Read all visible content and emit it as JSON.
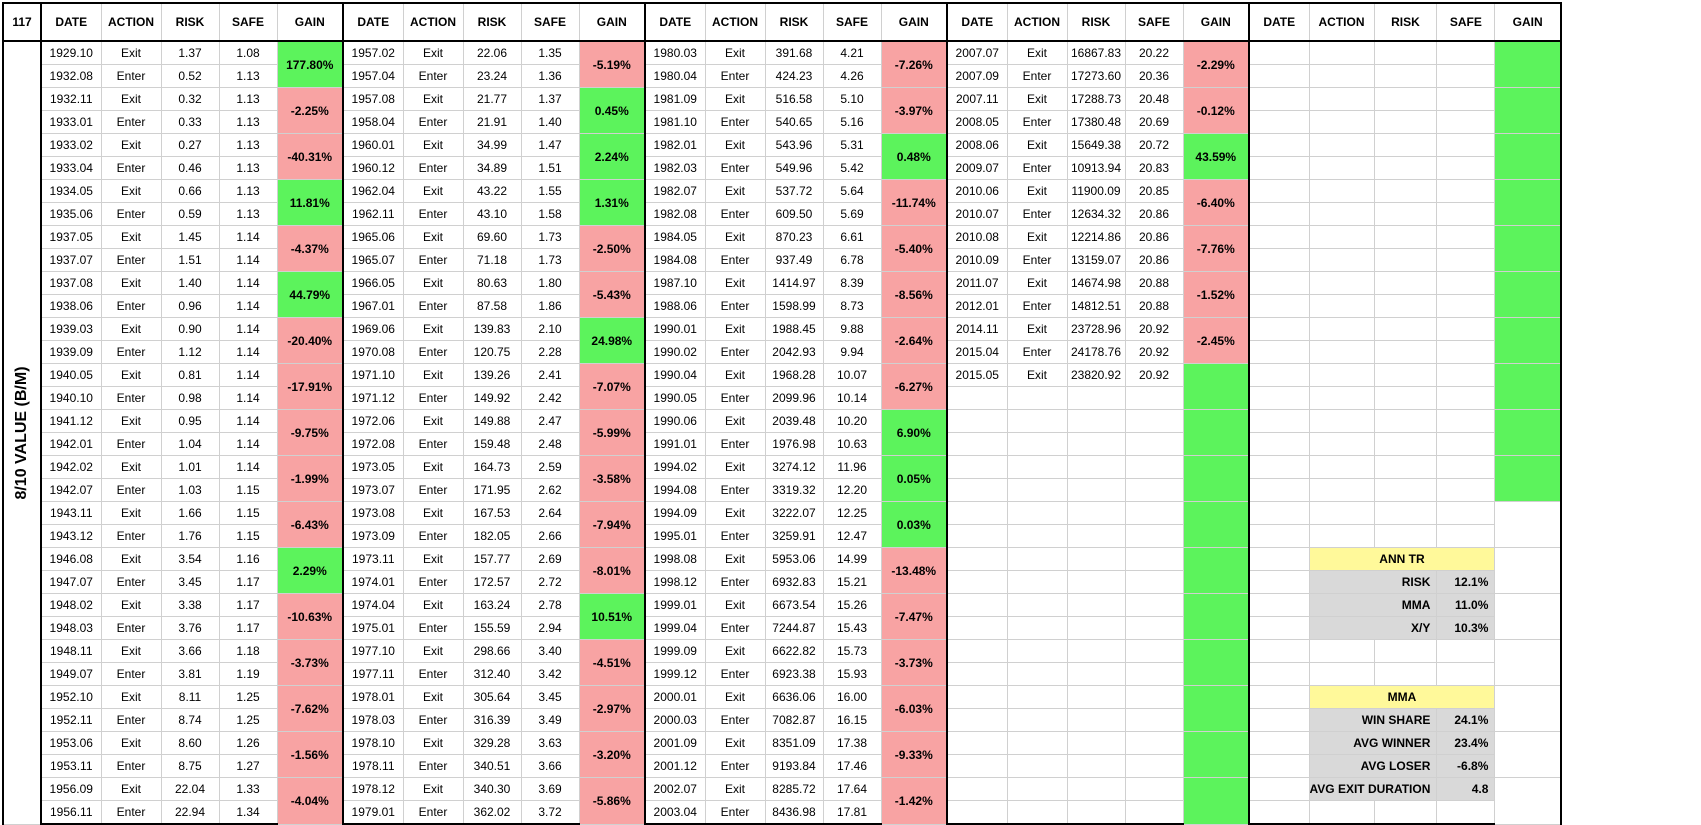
{
  "corner_label": "117",
  "side_label": "8/10 VALUE (B/M)",
  "headers": [
    "DATE",
    "ACTION",
    "RISK",
    "SAFE",
    "GAIN"
  ],
  "blocks": [
    {
      "rows": [
        [
          "1929.10",
          "Exit",
          "1.37",
          "1.08"
        ],
        [
          "1932.08",
          "Enter",
          "0.52",
          "1.13"
        ],
        [
          "1932.11",
          "Exit",
          "0.32",
          "1.13"
        ],
        [
          "1933.01",
          "Enter",
          "0.33",
          "1.13"
        ],
        [
          "1933.02",
          "Exit",
          "0.27",
          "1.13"
        ],
        [
          "1933.04",
          "Enter",
          "0.46",
          "1.13"
        ],
        [
          "1934.05",
          "Exit",
          "0.66",
          "1.13"
        ],
        [
          "1935.06",
          "Enter",
          "0.59",
          "1.13"
        ],
        [
          "1937.05",
          "Exit",
          "1.45",
          "1.14"
        ],
        [
          "1937.07",
          "Enter",
          "1.51",
          "1.14"
        ],
        [
          "1937.08",
          "Exit",
          "1.40",
          "1.14"
        ],
        [
          "1938.06",
          "Enter",
          "0.96",
          "1.14"
        ],
        [
          "1939.03",
          "Exit",
          "0.90",
          "1.14"
        ],
        [
          "1939.09",
          "Enter",
          "1.12",
          "1.14"
        ],
        [
          "1940.05",
          "Exit",
          "0.81",
          "1.14"
        ],
        [
          "1940.10",
          "Enter",
          "0.98",
          "1.14"
        ],
        [
          "1941.12",
          "Exit",
          "0.95",
          "1.14"
        ],
        [
          "1942.01",
          "Enter",
          "1.04",
          "1.14"
        ],
        [
          "1942.02",
          "Exit",
          "1.01",
          "1.14"
        ],
        [
          "1942.07",
          "Enter",
          "1.03",
          "1.15"
        ],
        [
          "1943.11",
          "Exit",
          "1.66",
          "1.15"
        ],
        [
          "1943.12",
          "Enter",
          "1.76",
          "1.15"
        ],
        [
          "1946.08",
          "Exit",
          "3.54",
          "1.16"
        ],
        [
          "1947.07",
          "Enter",
          "3.45",
          "1.17"
        ],
        [
          "1948.02",
          "Exit",
          "3.38",
          "1.17"
        ],
        [
          "1948.03",
          "Enter",
          "3.76",
          "1.17"
        ],
        [
          "1948.11",
          "Exit",
          "3.66",
          "1.18"
        ],
        [
          "1949.07",
          "Enter",
          "3.81",
          "1.19"
        ],
        [
          "1952.10",
          "Exit",
          "8.11",
          "1.25"
        ],
        [
          "1952.11",
          "Enter",
          "8.74",
          "1.25"
        ],
        [
          "1953.06",
          "Exit",
          "8.60",
          "1.26"
        ],
        [
          "1953.11",
          "Enter",
          "8.75",
          "1.27"
        ],
        [
          "1956.09",
          "Exit",
          "22.04",
          "1.33"
        ],
        [
          "1956.11",
          "Enter",
          "22.94",
          "1.34"
        ]
      ],
      "gains": [
        {
          "text": "177.80%",
          "color": "green"
        },
        {
          "text": "-2.25%",
          "color": "red"
        },
        {
          "text": "-40.31%",
          "color": "red"
        },
        {
          "text": "11.81%",
          "color": "green"
        },
        {
          "text": "-4.37%",
          "color": "red"
        },
        {
          "text": "44.79%",
          "color": "green"
        },
        {
          "text": "-20.40%",
          "color": "red"
        },
        {
          "text": "-17.91%",
          "color": "red"
        },
        {
          "text": "-9.75%",
          "color": "red"
        },
        {
          "text": "-1.99%",
          "color": "red"
        },
        {
          "text": "-6.43%",
          "color": "red"
        },
        {
          "text": "2.29%",
          "color": "green"
        },
        {
          "text": "-10.63%",
          "color": "red"
        },
        {
          "text": "-3.73%",
          "color": "red"
        },
        {
          "text": "-7.62%",
          "color": "red"
        },
        {
          "text": "-1.56%",
          "color": "red"
        },
        {
          "text": "-4.04%",
          "color": "red"
        }
      ]
    },
    {
      "rows": [
        [
          "1957.02",
          "Exit",
          "22.06",
          "1.35"
        ],
        [
          "1957.04",
          "Enter",
          "23.24",
          "1.36"
        ],
        [
          "1957.08",
          "Exit",
          "21.77",
          "1.37"
        ],
        [
          "1958.04",
          "Enter",
          "21.91",
          "1.40"
        ],
        [
          "1960.01",
          "Exit",
          "34.99",
          "1.47"
        ],
        [
          "1960.12",
          "Enter",
          "34.89",
          "1.51"
        ],
        [
          "1962.04",
          "Exit",
          "43.22",
          "1.55"
        ],
        [
          "1962.11",
          "Enter",
          "43.10",
          "1.58"
        ],
        [
          "1965.06",
          "Exit",
          "69.60",
          "1.73"
        ],
        [
          "1965.07",
          "Enter",
          "71.18",
          "1.73"
        ],
        [
          "1966.05",
          "Exit",
          "80.63",
          "1.80"
        ],
        [
          "1967.01",
          "Enter",
          "87.58",
          "1.86"
        ],
        [
          "1969.06",
          "Exit",
          "139.83",
          "2.10"
        ],
        [
          "1970.08",
          "Enter",
          "120.75",
          "2.28"
        ],
        [
          "1971.10",
          "Exit",
          "139.26",
          "2.41"
        ],
        [
          "1971.12",
          "Enter",
          "149.92",
          "2.42"
        ],
        [
          "1972.06",
          "Exit",
          "149.88",
          "2.47"
        ],
        [
          "1972.08",
          "Enter",
          "159.48",
          "2.48"
        ],
        [
          "1973.05",
          "Exit",
          "164.73",
          "2.59"
        ],
        [
          "1973.07",
          "Enter",
          "171.95",
          "2.62"
        ],
        [
          "1973.08",
          "Exit",
          "167.53",
          "2.64"
        ],
        [
          "1973.09",
          "Enter",
          "182.05",
          "2.66"
        ],
        [
          "1973.11",
          "Exit",
          "157.77",
          "2.69"
        ],
        [
          "1974.01",
          "Enter",
          "172.57",
          "2.72"
        ],
        [
          "1974.04",
          "Exit",
          "163.24",
          "2.78"
        ],
        [
          "1975.01",
          "Enter",
          "155.59",
          "2.94"
        ],
        [
          "1977.10",
          "Exit",
          "298.66",
          "3.40"
        ],
        [
          "1977.11",
          "Enter",
          "312.40",
          "3.42"
        ],
        [
          "1978.01",
          "Exit",
          "305.64",
          "3.45"
        ],
        [
          "1978.03",
          "Enter",
          "316.39",
          "3.49"
        ],
        [
          "1978.10",
          "Exit",
          "329.28",
          "3.63"
        ],
        [
          "1978.11",
          "Enter",
          "340.51",
          "3.66"
        ],
        [
          "1978.12",
          "Exit",
          "340.30",
          "3.69"
        ],
        [
          "1979.01",
          "Enter",
          "362.02",
          "3.72"
        ]
      ],
      "gains": [
        {
          "text": "-5.19%",
          "color": "red"
        },
        {
          "text": "0.45%",
          "color": "green"
        },
        {
          "text": "2.24%",
          "color": "green"
        },
        {
          "text": "1.31%",
          "color": "green"
        },
        {
          "text": "-2.50%",
          "color": "red"
        },
        {
          "text": "-5.43%",
          "color": "red"
        },
        {
          "text": "24.98%",
          "color": "green"
        },
        {
          "text": "-7.07%",
          "color": "red"
        },
        {
          "text": "-5.99%",
          "color": "red"
        },
        {
          "text": "-3.58%",
          "color": "red"
        },
        {
          "text": "-7.94%",
          "color": "red"
        },
        {
          "text": "-8.01%",
          "color": "red"
        },
        {
          "text": "10.51%",
          "color": "green"
        },
        {
          "text": "-4.51%",
          "color": "red"
        },
        {
          "text": "-2.97%",
          "color": "red"
        },
        {
          "text": "-3.20%",
          "color": "red"
        },
        {
          "text": "-5.86%",
          "color": "red"
        }
      ]
    },
    {
      "rows": [
        [
          "1980.03",
          "Exit",
          "391.68",
          "4.21"
        ],
        [
          "1980.04",
          "Enter",
          "424.23",
          "4.26"
        ],
        [
          "1981.09",
          "Exit",
          "516.58",
          "5.10"
        ],
        [
          "1981.10",
          "Enter",
          "540.65",
          "5.16"
        ],
        [
          "1982.01",
          "Exit",
          "543.96",
          "5.31"
        ],
        [
          "1982.03",
          "Enter",
          "549.96",
          "5.42"
        ],
        [
          "1982.07",
          "Exit",
          "537.72",
          "5.64"
        ],
        [
          "1982.08",
          "Enter",
          "609.50",
          "5.69"
        ],
        [
          "1984.05",
          "Exit",
          "870.23",
          "6.61"
        ],
        [
          "1984.08",
          "Enter",
          "937.49",
          "6.78"
        ],
        [
          "1987.10",
          "Exit",
          "1414.97",
          "8.39"
        ],
        [
          "1988.06",
          "Enter",
          "1598.99",
          "8.73"
        ],
        [
          "1990.01",
          "Exit",
          "1988.45",
          "9.88"
        ],
        [
          "1990.02",
          "Enter",
          "2042.93",
          "9.94"
        ],
        [
          "1990.04",
          "Exit",
          "1968.28",
          "10.07"
        ],
        [
          "1990.05",
          "Enter",
          "2099.96",
          "10.14"
        ],
        [
          "1990.06",
          "Exit",
          "2039.48",
          "10.20"
        ],
        [
          "1991.01",
          "Enter",
          "1976.98",
          "10.63"
        ],
        [
          "1994.02",
          "Exit",
          "3274.12",
          "11.96"
        ],
        [
          "1994.08",
          "Enter",
          "3319.32",
          "12.20"
        ],
        [
          "1994.09",
          "Exit",
          "3222.07",
          "12.25"
        ],
        [
          "1995.01",
          "Enter",
          "3259.91",
          "12.47"
        ],
        [
          "1998.08",
          "Exit",
          "5953.06",
          "14.99"
        ],
        [
          "1998.12",
          "Enter",
          "6932.83",
          "15.21"
        ],
        [
          "1999.01",
          "Exit",
          "6673.54",
          "15.26"
        ],
        [
          "1999.04",
          "Enter",
          "7244.87",
          "15.43"
        ],
        [
          "1999.09",
          "Exit",
          "6622.82",
          "15.73"
        ],
        [
          "1999.12",
          "Enter",
          "6923.38",
          "15.93"
        ],
        [
          "2000.01",
          "Exit",
          "6636.06",
          "16.00"
        ],
        [
          "2000.03",
          "Enter",
          "7082.87",
          "16.15"
        ],
        [
          "2001.09",
          "Exit",
          "8351.09",
          "17.38"
        ],
        [
          "2001.12",
          "Enter",
          "9193.84",
          "17.46"
        ],
        [
          "2002.07",
          "Exit",
          "8285.72",
          "17.64"
        ],
        [
          "2003.04",
          "Enter",
          "8436.98",
          "17.81"
        ]
      ],
      "gains": [
        {
          "text": "-7.26%",
          "color": "red"
        },
        {
          "text": "-3.97%",
          "color": "red"
        },
        {
          "text": "0.48%",
          "color": "green"
        },
        {
          "text": "-11.74%",
          "color": "red"
        },
        {
          "text": "-5.40%",
          "color": "red"
        },
        {
          "text": "-8.56%",
          "color": "red"
        },
        {
          "text": "-2.64%",
          "color": "red"
        },
        {
          "text": "-6.27%",
          "color": "red"
        },
        {
          "text": "6.90%",
          "color": "green"
        },
        {
          "text": "0.05%",
          "color": "green"
        },
        {
          "text": "0.03%",
          "color": "green"
        },
        {
          "text": "-13.48%",
          "color": "red"
        },
        {
          "text": "-7.47%",
          "color": "red"
        },
        {
          "text": "-3.73%",
          "color": "red"
        },
        {
          "text": "-6.03%",
          "color": "red"
        },
        {
          "text": "-9.33%",
          "color": "red"
        },
        {
          "text": "-1.42%",
          "color": "red"
        }
      ]
    },
    {
      "rows": [
        [
          "2007.07",
          "Exit",
          "16867.83",
          "20.22"
        ],
        [
          "2007.09",
          "Enter",
          "17273.60",
          "20.36"
        ],
        [
          "2007.11",
          "Exit",
          "17288.73",
          "20.48"
        ],
        [
          "2008.05",
          "Enter",
          "17380.48",
          "20.69"
        ],
        [
          "2008.06",
          "Exit",
          "15649.38",
          "20.72"
        ],
        [
          "2009.07",
          "Enter",
          "10913.94",
          "20.83"
        ],
        [
          "2010.06",
          "Exit",
          "11900.09",
          "20.85"
        ],
        [
          "2010.07",
          "Enter",
          "12634.32",
          "20.86"
        ],
        [
          "2010.08",
          "Exit",
          "12214.86",
          "20.86"
        ],
        [
          "2010.09",
          "Enter",
          "13159.07",
          "20.86"
        ],
        [
          "2011.07",
          "Exit",
          "14674.98",
          "20.88"
        ],
        [
          "2012.01",
          "Enter",
          "14812.51",
          "20.88"
        ],
        [
          "2014.11",
          "Exit",
          "23728.96",
          "20.92"
        ],
        [
          "2015.04",
          "Enter",
          "24178.76",
          "20.92"
        ],
        [
          "2015.05",
          "Exit",
          "23820.92",
          "20.92"
        ]
      ],
      "gains": [
        {
          "text": "-2.29%",
          "color": "red"
        },
        {
          "text": "-0.12%",
          "color": "red"
        },
        {
          "text": "43.59%",
          "color": "green"
        },
        {
          "text": "-6.40%",
          "color": "red"
        },
        {
          "text": "-7.76%",
          "color": "red"
        },
        {
          "text": "-1.52%",
          "color": "red"
        },
        {
          "text": "-2.45%",
          "color": "red"
        },
        {
          "text": "",
          "color": "green"
        },
        {
          "text": "",
          "color": "green"
        },
        {
          "text": "",
          "color": "green"
        },
        {
          "text": "",
          "color": "green"
        },
        {
          "text": "",
          "color": "green"
        },
        {
          "text": "",
          "color": "green"
        },
        {
          "text": "",
          "color": "green"
        },
        {
          "text": "",
          "color": "green"
        },
        {
          "text": "",
          "color": "green"
        },
        {
          "text": "",
          "color": "green"
        }
      ]
    },
    {
      "rows": [],
      "gains": [
        {
          "text": "",
          "color": "green"
        },
        {
          "text": "",
          "color": "green"
        },
        {
          "text": "",
          "color": "green"
        },
        {
          "text": "",
          "color": "green"
        },
        {
          "text": "",
          "color": "green"
        },
        {
          "text": "",
          "color": "green"
        },
        {
          "text": "",
          "color": "green"
        },
        {
          "text": "",
          "color": "green"
        },
        {
          "text": "",
          "color": "green"
        },
        {
          "text": "",
          "color": "green"
        },
        {
          "text": "",
          "color": "none"
        },
        {
          "text": "",
          "color": "none"
        },
        {
          "text": "",
          "color": "none"
        },
        {
          "text": "",
          "color": "none"
        },
        {
          "text": "",
          "color": "none"
        },
        {
          "text": "",
          "color": "none"
        },
        {
          "text": "",
          "color": "none"
        }
      ]
    }
  ],
  "summary": {
    "ann_tr": {
      "title": "ANN TR",
      "items": [
        {
          "label": "RISK",
          "value": "12.1%"
        },
        {
          "label": "MMA",
          "value": "11.0%"
        },
        {
          "label": "X/Y",
          "value": "10.3%"
        }
      ]
    },
    "mma": {
      "title": "MMA",
      "items": [
        {
          "label": "WIN SHARE",
          "value": "24.1%"
        },
        {
          "label": "AVG WINNER",
          "value": "23.4%"
        },
        {
          "label": "AVG LOSER",
          "value": "-6.8%"
        },
        {
          "label": "AVG EXIT DURATION",
          "value": "4.8"
        }
      ]
    }
  },
  "colors": {
    "gain_positive": "#5cf35c",
    "gain_negative": "#f8a3a3",
    "summary_title": "#fff99a",
    "summary_body": "#d9d9d9"
  }
}
